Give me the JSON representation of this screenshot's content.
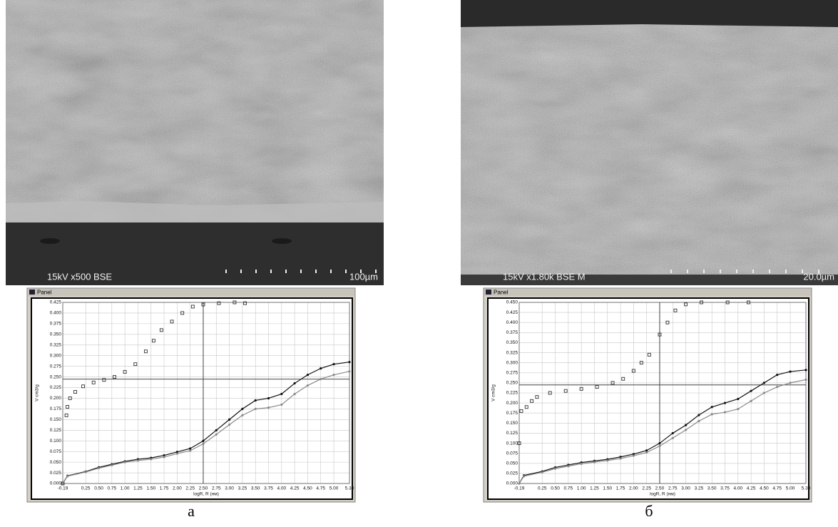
{
  "images": [
    {
      "sem_label": "15kV x500 BSE",
      "scale_label": "100µm",
      "window_title": "Panel",
      "caption": "а"
    },
    {
      "sem_label": "15kV x1.80k BSE M",
      "scale_label": "20.0µm",
      "window_title": "Panel",
      "caption": "б"
    }
  ],
  "chart_data": [
    {
      "type": "line",
      "xlabel": "logR, R (нм)",
      "ylabel": "V cm3/g",
      "grid": true,
      "xlim": [
        -0.19,
        5.3
      ],
      "ylim": [
        0,
        0.425
      ],
      "xticks": [
        -0.19,
        0.25,
        {
          "value": 0.5,
          "label": "0.50"
        },
        0.75,
        {
          "value": 1,
          "label": "1.00"
        },
        1.25,
        {
          "value": 1.5,
          "label": "1.50"
        },
        1.75,
        {
          "value": 2,
          "label": "2.00"
        },
        2.25,
        {
          "value": 2.5,
          "label": "2.50"
        },
        2.75,
        {
          "value": 3,
          "label": "3.00"
        },
        3.25,
        {
          "value": 3.5,
          "label": "3.50"
        },
        3.75,
        {
          "value": 4,
          "label": "4.00"
        },
        4.25,
        {
          "value": 4.5,
          "label": "4.50"
        },
        4.75,
        {
          "value": 5,
          "label": "5.00"
        },
        {
          "value": 5.3,
          "label": "5.30"
        }
      ],
      "yticks": [
        {
          "value": 0,
          "label": "0.000"
        },
        0.025,
        {
          "value": 0.05,
          "label": "0.050"
        },
        0.075,
        {
          "value": 0.1,
          "label": "0.100"
        },
        0.125,
        {
          "value": 0.15,
          "label": "0.150"
        },
        0.175,
        {
          "value": 0.2,
          "label": "0.200"
        },
        0.225,
        {
          "value": 0.25,
          "label": "0.250"
        },
        0.275,
        {
          "value": 0.3,
          "label": "0.300"
        },
        0.325,
        {
          "value": 0.35,
          "label": "0.350"
        },
        0.375,
        {
          "value": 0.4,
          "label": "0.400"
        },
        0.425
      ],
      "crosshair": {
        "x": 2.5,
        "y": 0.245
      },
      "series": [
        {
          "color": "#333333",
          "marker": "open-square",
          "line": false,
          "x": [
            -0.19,
            -0.12,
            -0.1,
            -0.05,
            0.05,
            0.2,
            0.4,
            0.6,
            0.8,
            1.0,
            1.2,
            1.4,
            1.55,
            1.7,
            1.9,
            2.1,
            2.3,
            2.5,
            2.8,
            3.1,
            3.3
          ],
          "values": [
            0,
            0.16,
            0.18,
            0.2,
            0.215,
            0.228,
            0.237,
            0.243,
            0.25,
            0.262,
            0.28,
            0.31,
            0.335,
            0.36,
            0.38,
            0.4,
            0.415,
            0.42,
            0.423,
            0.425,
            0.423
          ]
        },
        {
          "color": "#111111",
          "marker": "dot",
          "line": true,
          "x": [
            -0.19,
            -0.1,
            0.25,
            0.5,
            0.75,
            1.0,
            1.25,
            1.5,
            1.75,
            2.0,
            2.25,
            2.5,
            2.75,
            3.0,
            3.25,
            3.5,
            3.75,
            4.0,
            4.25,
            4.5,
            4.75,
            5.0,
            5.3
          ],
          "values": [
            0,
            0.018,
            0.028,
            0.038,
            0.045,
            0.052,
            0.057,
            0.06,
            0.066,
            0.074,
            0.082,
            0.1,
            0.125,
            0.15,
            0.175,
            0.195,
            0.2,
            0.21,
            0.235,
            0.255,
            0.27,
            0.28,
            0.285
          ]
        },
        {
          "color": "#8a8a8a",
          "marker": "dot",
          "line": true,
          "x": [
            -0.19,
            -0.1,
            0.25,
            0.5,
            0.75,
            1.0,
            1.25,
            1.5,
            1.75,
            2.0,
            2.25,
            2.5,
            2.75,
            3.0,
            3.25,
            3.5,
            3.75,
            4.0,
            4.25,
            4.5,
            4.75,
            5.0,
            5.3
          ],
          "values": [
            0,
            0.017,
            0.027,
            0.036,
            0.043,
            0.05,
            0.054,
            0.057,
            0.062,
            0.07,
            0.077,
            0.093,
            0.115,
            0.138,
            0.16,
            0.175,
            0.178,
            0.185,
            0.21,
            0.23,
            0.245,
            0.255,
            0.263
          ]
        }
      ]
    },
    {
      "type": "line",
      "xlabel": "logR, R (нм)",
      "ylabel": "V cm3/g",
      "grid": true,
      "xlim": [
        -0.19,
        5.3
      ],
      "ylim": [
        0,
        0.45
      ],
      "xticks": [
        -0.19,
        0.25,
        {
          "value": 0.5,
          "label": "0.50"
        },
        0.75,
        {
          "value": 1,
          "label": "1.00"
        },
        1.25,
        {
          "value": 1.5,
          "label": "1.50"
        },
        1.75,
        {
          "value": 2,
          "label": "2.00"
        },
        2.25,
        {
          "value": 2.5,
          "label": "2.50"
        },
        2.75,
        {
          "value": 3,
          "label": "3.00"
        },
        3.25,
        {
          "value": 3.5,
          "label": "3.50"
        },
        3.75,
        {
          "value": 4,
          "label": "4.00"
        },
        4.25,
        {
          "value": 4.5,
          "label": "4.50"
        },
        4.75,
        {
          "value": 5,
          "label": "5.00"
        },
        {
          "value": 5.3,
          "label": "5.30"
        }
      ],
      "yticks": [
        {
          "value": 0,
          "label": "0.000"
        },
        0.025,
        {
          "value": 0.05,
          "label": "0.050"
        },
        0.075,
        {
          "value": 0.1,
          "label": "0.100"
        },
        0.125,
        {
          "value": 0.15,
          "label": "0.150"
        },
        0.175,
        {
          "value": 0.2,
          "label": "0.200"
        },
        0.225,
        {
          "value": 0.25,
          "label": "0.250"
        },
        0.275,
        {
          "value": 0.3,
          "label": "0.300"
        },
        0.325,
        {
          "value": 0.35,
          "label": "0.350"
        },
        0.375,
        {
          "value": 0.4,
          "label": "0.400"
        },
        0.425,
        {
          "value": 0.45,
          "label": "0.450"
        }
      ],
      "crosshair": {
        "x": 2.5,
        "y": 0.245
      },
      "series": [
        {
          "color": "#333333",
          "marker": "open-square",
          "line": false,
          "x": [
            -0.19,
            -0.15,
            -0.05,
            0.05,
            0.15,
            0.4,
            0.7,
            1.0,
            1.3,
            1.6,
            1.8,
            2.0,
            2.15,
            2.3,
            2.5,
            2.65,
            2.8,
            3.0,
            3.3,
            3.8,
            4.2
          ],
          "values": [
            0.1,
            0.18,
            0.19,
            0.205,
            0.215,
            0.225,
            0.23,
            0.235,
            0.24,
            0.25,
            0.26,
            0.28,
            0.3,
            0.32,
            0.37,
            0.4,
            0.43,
            0.445,
            0.45,
            0.45,
            0.45
          ]
        },
        {
          "color": "#111111",
          "marker": "dot",
          "line": true,
          "x": [
            -0.19,
            -0.1,
            0.25,
            0.5,
            0.75,
            1.0,
            1.25,
            1.5,
            1.75,
            2.0,
            2.25,
            2.5,
            2.75,
            3.0,
            3.25,
            3.5,
            3.75,
            4.0,
            4.25,
            4.5,
            4.75,
            5.0,
            5.3
          ],
          "values": [
            0,
            0.02,
            0.03,
            0.04,
            0.046,
            0.052,
            0.056,
            0.06,
            0.066,
            0.073,
            0.082,
            0.1,
            0.125,
            0.145,
            0.17,
            0.19,
            0.2,
            0.21,
            0.23,
            0.25,
            0.27,
            0.278,
            0.282
          ]
        },
        {
          "color": "#8a8a8a",
          "marker": "dot",
          "line": true,
          "x": [
            -0.19,
            -0.1,
            0.25,
            0.5,
            0.75,
            1.0,
            1.25,
            1.5,
            1.75,
            2.0,
            2.25,
            2.5,
            2.75,
            3.0,
            3.25,
            3.5,
            3.75,
            4.0,
            4.25,
            4.5,
            4.75,
            5.0,
            5.3
          ],
          "values": [
            0,
            0.018,
            0.028,
            0.037,
            0.043,
            0.049,
            0.053,
            0.057,
            0.062,
            0.069,
            0.077,
            0.093,
            0.113,
            0.133,
            0.155,
            0.172,
            0.177,
            0.185,
            0.205,
            0.225,
            0.24,
            0.25,
            0.258
          ]
        }
      ]
    }
  ]
}
